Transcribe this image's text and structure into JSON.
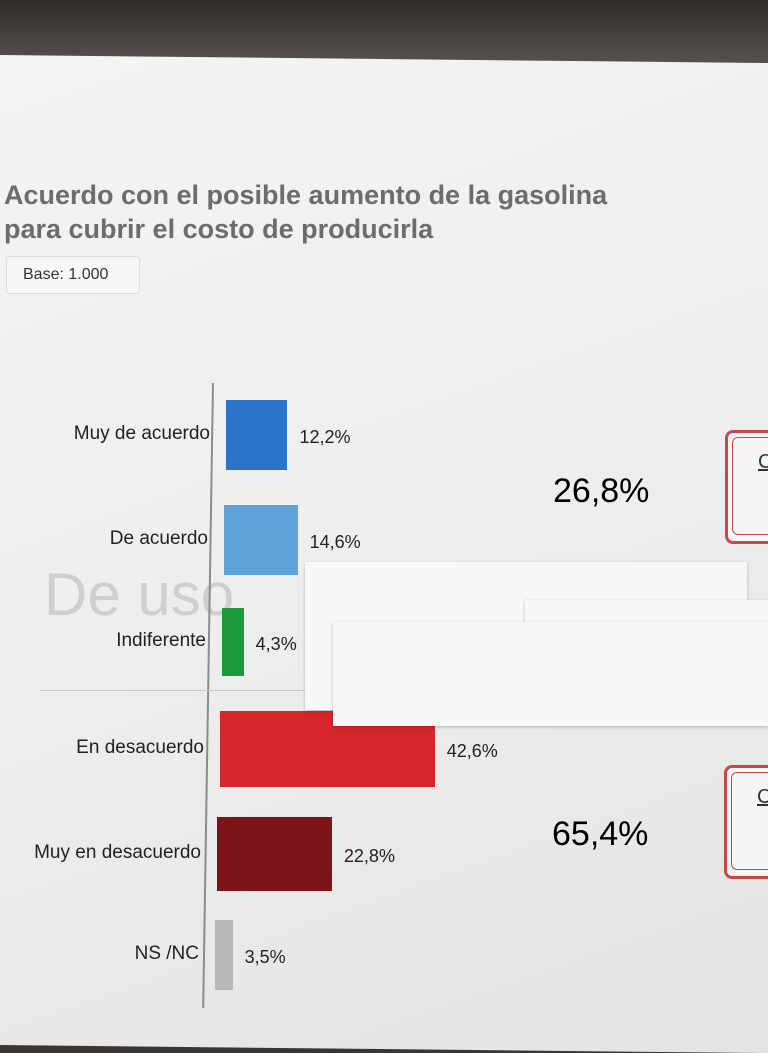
{
  "header": {
    "title_line1": "Acuerdo con el posible aumento de la gasolina",
    "title_line2": "para cubrir el costo de producirla",
    "base_label": "Base: 1.000"
  },
  "watermark": "De uso",
  "summary": {
    "agree_total": "26,8%",
    "disagree_total": "65,4%",
    "agree_color": "#1f6fd1",
    "disagree_color": "#9e1b22"
  },
  "badges": {
    "top_letter": "C",
    "bottom_letter": "C"
  },
  "chart_data": {
    "type": "bar",
    "orientation": "horizontal",
    "title": "Acuerdo con el posible aumento de la gasolina para cubrir el costo de producirla",
    "categories": [
      "Muy de acuerdo",
      "De acuerdo",
      "Indiferente",
      "En desacuerdo",
      "Muy en desacuerdo",
      "NS /NC"
    ],
    "values": [
      12.2,
      14.6,
      4.3,
      42.6,
      22.8,
      3.5
    ],
    "value_labels": [
      "12,2%",
      "14,6%",
      "4,3%",
      "42,6%",
      "22,8%",
      "3,5%"
    ],
    "colors": [
      "#2d73c8",
      "#5ea3da",
      "#1f9a3a",
      "#d4262b",
      "#7d1419",
      "#b8b8b8"
    ],
    "xlim": [
      0,
      45
    ],
    "grid": false
  }
}
